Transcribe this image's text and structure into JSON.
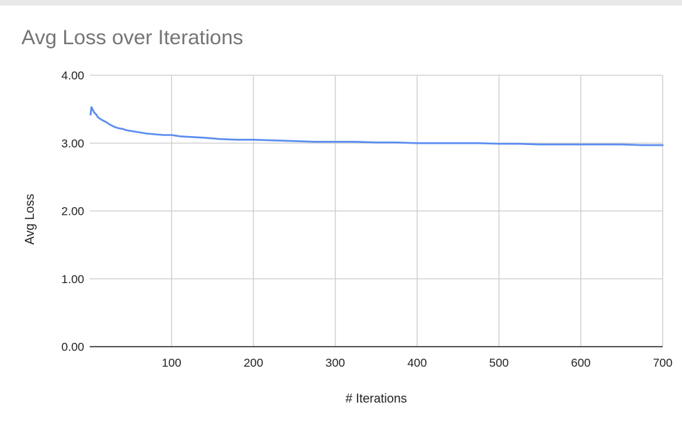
{
  "chart_data": {
    "type": "line",
    "title": "Avg Loss over Iterations",
    "xlabel": "# Iterations",
    "ylabel": "Avg Loss",
    "xlim": [
      0,
      700
    ],
    "ylim": [
      0,
      4
    ],
    "x_ticks": [
      100,
      200,
      300,
      400,
      500,
      600,
      700
    ],
    "x_tick_labels": [
      "100",
      "200",
      "300",
      "400",
      "500",
      "600",
      "700"
    ],
    "y_ticks": [
      0,
      1,
      2,
      3,
      4
    ],
    "y_tick_labels": [
      "0.00",
      "1.00",
      "2.00",
      "3.00",
      "4.00"
    ],
    "grid": true,
    "legend": "none",
    "series": [
      {
        "color": "#5b8def",
        "x": [
          1,
          2,
          3,
          5,
          8,
          10,
          15,
          20,
          25,
          30,
          35,
          40,
          45,
          50,
          60,
          70,
          80,
          90,
          100,
          110,
          125,
          140,
          160,
          180,
          200,
          225,
          250,
          275,
          300,
          325,
          350,
          375,
          400,
          425,
          450,
          475,
          500,
          525,
          550,
          575,
          600,
          625,
          650,
          675,
          700
        ],
        "y": [
          3.42,
          3.53,
          3.51,
          3.46,
          3.42,
          3.38,
          3.34,
          3.31,
          3.27,
          3.24,
          3.22,
          3.21,
          3.19,
          3.18,
          3.16,
          3.14,
          3.13,
          3.12,
          3.12,
          3.1,
          3.09,
          3.08,
          3.06,
          3.05,
          3.05,
          3.04,
          3.03,
          3.02,
          3.02,
          3.02,
          3.01,
          3.01,
          3.0,
          3.0,
          3.0,
          3.0,
          2.99,
          2.99,
          2.98,
          2.98,
          2.98,
          2.98,
          2.98,
          2.97,
          2.97
        ]
      }
    ]
  }
}
